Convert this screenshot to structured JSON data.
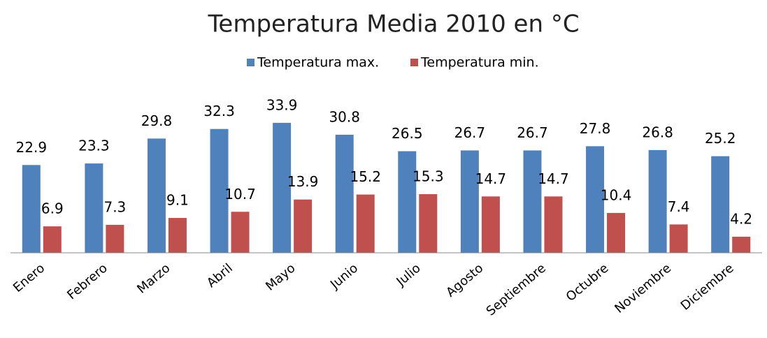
{
  "chart_data": {
    "type": "bar",
    "title": "Temperatura Media 2010 en °C",
    "categories": [
      "Enero",
      "Febrero",
      "Marzo",
      "Abril",
      "Mayo",
      "Junio",
      "Julio",
      "Agosto",
      "Septiembre",
      "Octubre",
      "Noviembre",
      "Diciembre"
    ],
    "series": [
      {
        "name": "Temperatura max.",
        "color": "#4f81bd",
        "values": [
          22.9,
          23.3,
          29.8,
          32.3,
          33.9,
          30.8,
          26.5,
          26.7,
          26.7,
          27.8,
          26.8,
          25.2
        ]
      },
      {
        "name": "Temperatura min.",
        "color": "#c0504d",
        "values": [
          6.9,
          7.3,
          9.1,
          10.7,
          13.9,
          15.2,
          15.3,
          14.7,
          14.7,
          10.4,
          7.4,
          4.2
        ]
      }
    ],
    "legend": "top"
  }
}
